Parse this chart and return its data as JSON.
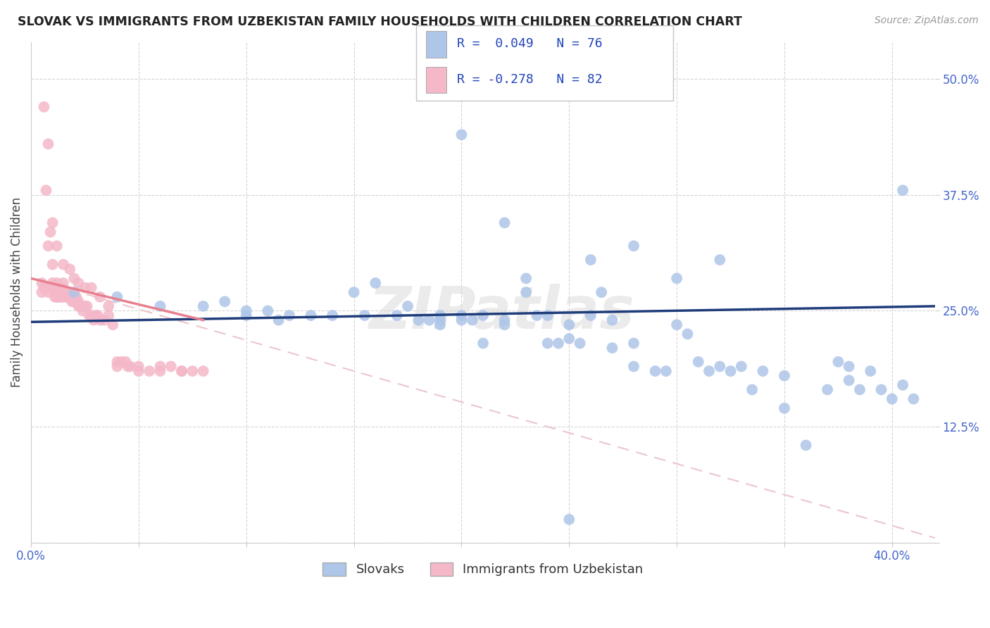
{
  "title": "SLOVAK VS IMMIGRANTS FROM UZBEKISTAN FAMILY HOUSEHOLDS WITH CHILDREN CORRELATION CHART",
  "source": "Source: ZipAtlas.com",
  "ylabel": "Family Households with Children",
  "xlim": [
    0.0,
    0.42
  ],
  "ylim": [
    0.0,
    0.54
  ],
  "blue_color": "#aec6e8",
  "pink_color": "#f4b8c8",
  "line_blue_color": "#1f3d7a",
  "line_pink_color": "#e88090",
  "line_pink_dash_color": "#e8b8c0",
  "watermark": "ZIPatlas",
  "legend_r1": "R =  0.049   N = 76",
  "legend_r2": "R = -0.278   N = 82",
  "blue_line_x": [
    0.0,
    0.42
  ],
  "blue_line_y": [
    0.238,
    0.255
  ],
  "pink_solid_line_x": [
    0.0,
    0.08
  ],
  "pink_solid_line_y": [
    0.285,
    0.24
  ],
  "pink_dash_line_x": [
    0.0,
    0.42
  ],
  "pink_dash_line_y": [
    0.285,
    0.005
  ],
  "blue_x": [
    0.02,
    0.04,
    0.06,
    0.08,
    0.09,
    0.1,
    0.1,
    0.11,
    0.115,
    0.12,
    0.13,
    0.14,
    0.15,
    0.155,
    0.16,
    0.17,
    0.175,
    0.18,
    0.185,
    0.19,
    0.19,
    0.19,
    0.2,
    0.2,
    0.205,
    0.21,
    0.21,
    0.22,
    0.22,
    0.23,
    0.23,
    0.235,
    0.24,
    0.24,
    0.245,
    0.25,
    0.25,
    0.255,
    0.26,
    0.265,
    0.27,
    0.27,
    0.28,
    0.28,
    0.29,
    0.295,
    0.3,
    0.305,
    0.31,
    0.315,
    0.32,
    0.325,
    0.33,
    0.335,
    0.34,
    0.35,
    0.36,
    0.37,
    0.375,
    0.38,
    0.385,
    0.39,
    0.395,
    0.4,
    0.405,
    0.41,
    0.28,
    0.3,
    0.22,
    0.26,
    0.32,
    0.35,
    0.38,
    0.405,
    0.2,
    0.25
  ],
  "blue_y": [
    0.27,
    0.265,
    0.255,
    0.255,
    0.26,
    0.25,
    0.245,
    0.25,
    0.24,
    0.245,
    0.245,
    0.245,
    0.27,
    0.245,
    0.28,
    0.245,
    0.255,
    0.24,
    0.24,
    0.24,
    0.235,
    0.245,
    0.24,
    0.245,
    0.24,
    0.245,
    0.215,
    0.24,
    0.235,
    0.285,
    0.27,
    0.245,
    0.215,
    0.245,
    0.215,
    0.235,
    0.22,
    0.215,
    0.245,
    0.27,
    0.21,
    0.24,
    0.19,
    0.215,
    0.185,
    0.185,
    0.235,
    0.225,
    0.195,
    0.185,
    0.19,
    0.185,
    0.19,
    0.165,
    0.185,
    0.145,
    0.105,
    0.165,
    0.195,
    0.19,
    0.165,
    0.185,
    0.165,
    0.155,
    0.17,
    0.155,
    0.32,
    0.285,
    0.345,
    0.305,
    0.305,
    0.18,
    0.175,
    0.38,
    0.44,
    0.025
  ],
  "pink_x": [
    0.005,
    0.005,
    0.006,
    0.007,
    0.008,
    0.008,
    0.009,
    0.009,
    0.01,
    0.01,
    0.01,
    0.011,
    0.011,
    0.012,
    0.012,
    0.012,
    0.013,
    0.013,
    0.013,
    0.014,
    0.014,
    0.015,
    0.015,
    0.015,
    0.016,
    0.016,
    0.017,
    0.017,
    0.017,
    0.018,
    0.018,
    0.019,
    0.019,
    0.02,
    0.02,
    0.02,
    0.021,
    0.021,
    0.022,
    0.022,
    0.023,
    0.023,
    0.024,
    0.025,
    0.026,
    0.027,
    0.028,
    0.029,
    0.03,
    0.031,
    0.032,
    0.034,
    0.036,
    0.038,
    0.04,
    0.042,
    0.044,
    0.046,
    0.05,
    0.055,
    0.06,
    0.065,
    0.07,
    0.075,
    0.006,
    0.008,
    0.01,
    0.012,
    0.015,
    0.018,
    0.02,
    0.022,
    0.025,
    0.028,
    0.032,
    0.036,
    0.04,
    0.045,
    0.05,
    0.06,
    0.07,
    0.08
  ],
  "pink_y": [
    0.27,
    0.28,
    0.275,
    0.38,
    0.32,
    0.27,
    0.335,
    0.275,
    0.3,
    0.28,
    0.275,
    0.27,
    0.265,
    0.28,
    0.265,
    0.265,
    0.275,
    0.265,
    0.265,
    0.275,
    0.265,
    0.28,
    0.27,
    0.265,
    0.27,
    0.265,
    0.27,
    0.265,
    0.265,
    0.265,
    0.265,
    0.265,
    0.26,
    0.265,
    0.265,
    0.26,
    0.26,
    0.265,
    0.255,
    0.26,
    0.255,
    0.255,
    0.25,
    0.255,
    0.255,
    0.245,
    0.245,
    0.24,
    0.245,
    0.245,
    0.24,
    0.24,
    0.245,
    0.235,
    0.195,
    0.195,
    0.195,
    0.19,
    0.19,
    0.185,
    0.185,
    0.19,
    0.185,
    0.185,
    0.47,
    0.43,
    0.345,
    0.32,
    0.3,
    0.295,
    0.285,
    0.28,
    0.275,
    0.275,
    0.265,
    0.255,
    0.19,
    0.19,
    0.185,
    0.19,
    0.185,
    0.185
  ]
}
